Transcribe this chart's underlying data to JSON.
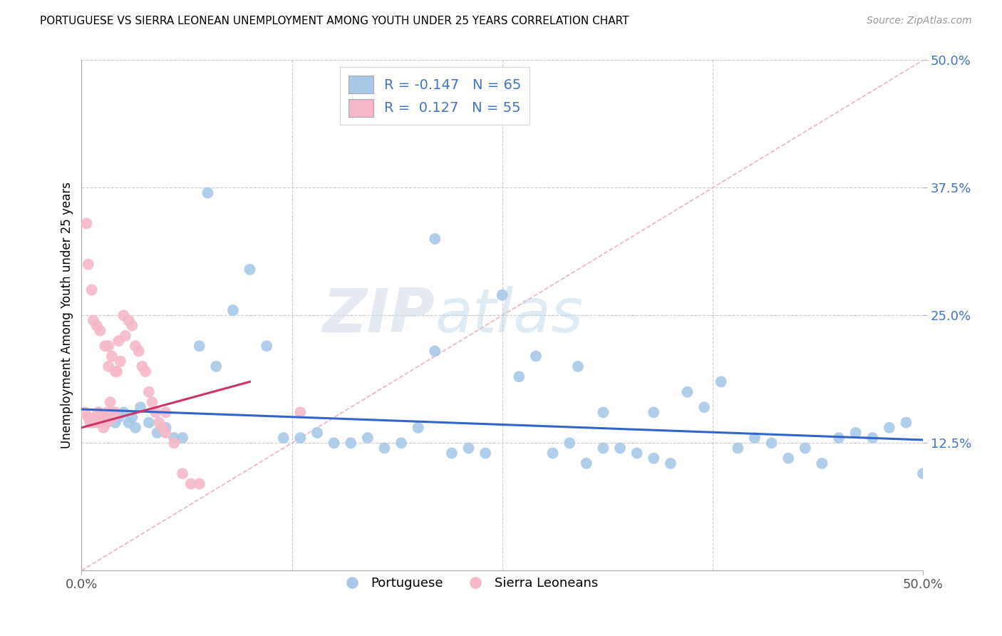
{
  "title": "PORTUGUESE VS SIERRA LEONEAN UNEMPLOYMENT AMONG YOUTH UNDER 25 YEARS CORRELATION CHART",
  "source": "Source: ZipAtlas.com",
  "ylabel": "Unemployment Among Youth under 25 years",
  "legend_portuguese": "Portuguese",
  "legend_sierra": "Sierra Leoneans",
  "R_portuguese": -0.147,
  "N_portuguese": 65,
  "R_sierra": 0.127,
  "N_sierra": 55,
  "xlim": [
    0.0,
    0.5
  ],
  "ylim": [
    0.0,
    0.5
  ],
  "ytick_positions": [
    0.125,
    0.25,
    0.375,
    0.5
  ],
  "ytick_labels": [
    "12.5%",
    "25.0%",
    "37.5%",
    "50.0%"
  ],
  "xtick_labels_edge": [
    "0.0%",
    "50.0%"
  ],
  "color_portuguese": "#a8c8e8",
  "color_sierra": "#f5b8c8",
  "line_color_portuguese": "#3366cc",
  "line_color_sierra": "#cc3366",
  "watermark_zip": "ZIP",
  "watermark_atlas": "atlas",
  "portuguese_x": [
    0.01,
    0.012,
    0.015,
    0.018,
    0.02,
    0.022,
    0.025,
    0.028,
    0.03,
    0.032,
    0.035,
    0.04,
    0.045,
    0.05,
    0.055,
    0.06,
    0.07,
    0.08,
    0.09,
    0.1,
    0.11,
    0.12,
    0.13,
    0.14,
    0.15,
    0.16,
    0.17,
    0.18,
    0.19,
    0.2,
    0.21,
    0.22,
    0.23,
    0.24,
    0.25,
    0.26,
    0.27,
    0.28,
    0.29,
    0.3,
    0.31,
    0.32,
    0.33,
    0.34,
    0.35,
    0.36,
    0.37,
    0.38,
    0.39,
    0.4,
    0.41,
    0.42,
    0.43,
    0.44,
    0.45,
    0.46,
    0.47,
    0.48,
    0.49,
    0.5,
    0.295,
    0.31,
    0.075,
    0.21,
    0.34
  ],
  "portuguese_y": [
    0.155,
    0.15,
    0.145,
    0.15,
    0.145,
    0.15,
    0.155,
    0.145,
    0.15,
    0.14,
    0.16,
    0.145,
    0.135,
    0.14,
    0.13,
    0.13,
    0.22,
    0.2,
    0.255,
    0.295,
    0.22,
    0.13,
    0.13,
    0.135,
    0.125,
    0.125,
    0.13,
    0.12,
    0.125,
    0.14,
    0.215,
    0.115,
    0.12,
    0.115,
    0.27,
    0.19,
    0.21,
    0.115,
    0.125,
    0.105,
    0.12,
    0.12,
    0.115,
    0.155,
    0.105,
    0.175,
    0.16,
    0.185,
    0.12,
    0.13,
    0.125,
    0.11,
    0.12,
    0.105,
    0.13,
    0.135,
    0.13,
    0.14,
    0.145,
    0.095,
    0.2,
    0.155,
    0.37,
    0.325,
    0.11
  ],
  "sierra_x": [
    0.002,
    0.004,
    0.005,
    0.006,
    0.007,
    0.008,
    0.008,
    0.009,
    0.01,
    0.01,
    0.011,
    0.012,
    0.013,
    0.013,
    0.014,
    0.015,
    0.015,
    0.016,
    0.017,
    0.018,
    0.019,
    0.02,
    0.021,
    0.022,
    0.023,
    0.025,
    0.026,
    0.028,
    0.03,
    0.032,
    0.034,
    0.036,
    0.038,
    0.04,
    0.042,
    0.044,
    0.046,
    0.048,
    0.05,
    0.055,
    0.06,
    0.065,
    0.07,
    0.003,
    0.004,
    0.006,
    0.007,
    0.009,
    0.011,
    0.014,
    0.016,
    0.018,
    0.02,
    0.05,
    0.13
  ],
  "sierra_y": [
    0.155,
    0.15,
    0.145,
    0.145,
    0.145,
    0.15,
    0.145,
    0.15,
    0.155,
    0.145,
    0.15,
    0.145,
    0.14,
    0.15,
    0.15,
    0.145,
    0.155,
    0.2,
    0.165,
    0.155,
    0.15,
    0.155,
    0.195,
    0.225,
    0.205,
    0.25,
    0.23,
    0.245,
    0.24,
    0.22,
    0.215,
    0.2,
    0.195,
    0.175,
    0.165,
    0.155,
    0.145,
    0.14,
    0.135,
    0.125,
    0.095,
    0.085,
    0.085,
    0.34,
    0.3,
    0.275,
    0.245,
    0.24,
    0.235,
    0.22,
    0.22,
    0.21,
    0.195,
    0.155,
    0.155
  ],
  "port_line_x0": 0.0,
  "port_line_y0": 0.158,
  "port_line_x1": 0.5,
  "port_line_y1": 0.128,
  "sierra_line_x0": 0.0,
  "sierra_line_y0": 0.14,
  "sierra_line_x1": 0.1,
  "sierra_line_y1": 0.185
}
